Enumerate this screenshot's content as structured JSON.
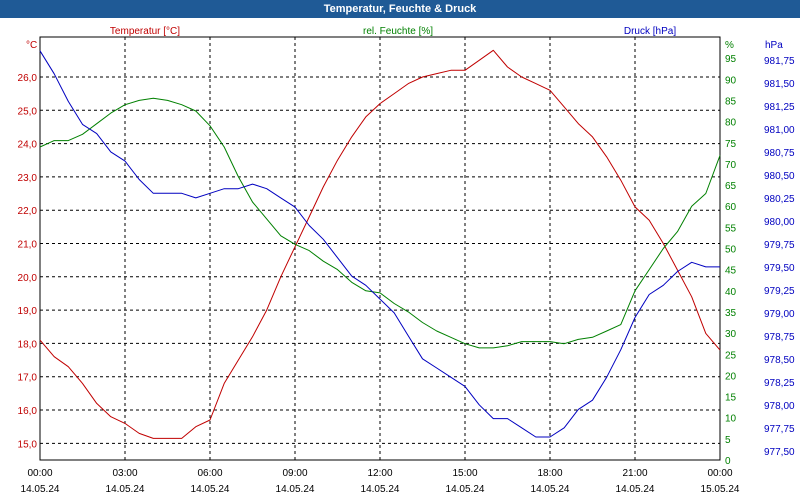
{
  "window": {
    "title": "Temperatur, Feuchte & Druck"
  },
  "colors": {
    "temperature": "#c00000",
    "humidity": "#008000",
    "pressure": "#0000c0",
    "titlebar": "#1f5a96"
  },
  "chart_data": {
    "type": "line",
    "title": "Temperatur, Feuchte & Druck",
    "grid": true,
    "x_ticks": [
      {
        "time": "00:00",
        "date": "14.05.24"
      },
      {
        "time": "03:00",
        "date": "14.05.24"
      },
      {
        "time": "06:00",
        "date": "14.05.24"
      },
      {
        "time": "09:00",
        "date": "14.05.24"
      },
      {
        "time": "12:00",
        "date": "14.05.24"
      },
      {
        "time": "15:00",
        "date": "14.05.24"
      },
      {
        "time": "18:00",
        "date": "14.05.24"
      },
      {
        "time": "21:00",
        "date": "14.05.24"
      },
      {
        "time": "00:00",
        "date": "15.05.24"
      }
    ],
    "axes": {
      "temperature": {
        "label": "Temperatur [°C]",
        "unit": "°C",
        "ylim": [
          14.5,
          27.2
        ],
        "ticks": [
          "15,0",
          "16,0",
          "17,0",
          "18,0",
          "19,0",
          "20,0",
          "21,0",
          "22,0",
          "23,0",
          "24,0",
          "25,0",
          "26,0"
        ]
      },
      "humidity": {
        "label": "rel. Feuchte [%]",
        "unit": "%",
        "ylim": [
          0,
          100
        ],
        "ticks": [
          "0",
          "5",
          "10",
          "15",
          "20",
          "25",
          "30",
          "35",
          "40",
          "45",
          "50",
          "55",
          "60",
          "65",
          "70",
          "75",
          "80",
          "85",
          "90",
          "95",
          "%"
        ]
      },
      "pressure": {
        "label": "Druck [hPa]",
        "unit": "hPa",
        "ylim": [
          977.4,
          982.0
        ],
        "ticks": [
          "977,50",
          "977,75",
          "978,00",
          "978,25",
          "978,50",
          "978,75",
          "979,00",
          "979,25",
          "979,50",
          "979,75",
          "980,00",
          "980,25",
          "980,50",
          "980,75",
          "981,00",
          "981,25",
          "981,50",
          "981,75"
        ]
      }
    },
    "series": [
      {
        "name": "Temperatur [°C]",
        "axis": "temperature",
        "x": [
          0,
          0.5,
          1,
          1.5,
          2,
          2.5,
          3,
          3.5,
          4,
          4.5,
          5,
          5.5,
          6,
          6.5,
          7,
          7.5,
          8,
          8.5,
          9,
          9.5,
          10,
          10.5,
          11,
          11.5,
          12,
          12.5,
          13,
          13.5,
          14,
          14.5,
          15,
          15.5,
          16,
          16.5,
          17,
          17.5,
          18,
          18.5,
          19,
          19.5,
          20,
          20.5,
          21,
          21.5,
          22,
          22.5,
          23,
          23.5,
          24
        ],
        "values": [
          18.1,
          17.6,
          17.3,
          16.8,
          16.2,
          15.8,
          15.6,
          15.3,
          15.15,
          15.15,
          15.15,
          15.5,
          15.7,
          16.8,
          17.5,
          18.2,
          19.0,
          20.0,
          20.9,
          21.8,
          22.7,
          23.5,
          24.2,
          24.8,
          25.2,
          25.5,
          25.8,
          26.0,
          26.1,
          26.2,
          26.2,
          26.5,
          26.8,
          26.3,
          26.0,
          25.8,
          25.6,
          25.1,
          24.6,
          24.2,
          23.6,
          22.9,
          22.1,
          21.7,
          21.0,
          20.2,
          19.4,
          18.3,
          17.8
        ]
      },
      {
        "name": "rel. Feuchte [%]",
        "axis": "humidity",
        "x": [
          0,
          0.5,
          1,
          1.5,
          2,
          2.5,
          3,
          3.5,
          4,
          4.5,
          5,
          5.5,
          6,
          6.5,
          7,
          7.5,
          8,
          8.5,
          9,
          9.5,
          10,
          10.5,
          11,
          11.5,
          12,
          12.5,
          13,
          13.5,
          14,
          14.5,
          15,
          15.5,
          16,
          16.5,
          17,
          17.5,
          18,
          18.5,
          19,
          19.5,
          20,
          20.5,
          21,
          21.5,
          22,
          22.5,
          23,
          23.5,
          24
        ],
        "values": [
          74,
          75.5,
          75.5,
          77,
          79.5,
          82,
          84,
          85,
          85.5,
          85,
          84,
          82.5,
          79,
          74,
          67,
          61,
          57,
          53,
          51,
          49.5,
          47,
          45,
          42,
          40,
          39.5,
          37,
          35,
          32.5,
          30.5,
          29,
          27.5,
          26.5,
          26.5,
          27,
          28,
          28,
          28,
          27.5,
          28.5,
          29,
          30.5,
          32,
          40,
          45,
          50,
          54,
          60,
          63,
          72
        ]
      },
      {
        "name": "Druck [hPa]",
        "axis": "pressure",
        "x": [
          0,
          0.5,
          1,
          1.5,
          2,
          2.5,
          3,
          3.5,
          4,
          4.5,
          5,
          5.5,
          6,
          6.5,
          7,
          7.5,
          8,
          8.5,
          9,
          9.5,
          10,
          10.5,
          11,
          11.5,
          12,
          12.5,
          13,
          13.5,
          14,
          14.5,
          15,
          15.5,
          16,
          16.5,
          17,
          17.5,
          18,
          18.5,
          19,
          19.5,
          20,
          20.5,
          21,
          21.5,
          22,
          22.5,
          23,
          23.5,
          24
        ],
        "values": [
          981.85,
          981.6,
          981.3,
          981.05,
          980.95,
          980.75,
          980.65,
          980.45,
          980.3,
          980.3,
          980.3,
          980.25,
          980.3,
          980.35,
          980.35,
          980.4,
          980.35,
          980.25,
          980.15,
          979.95,
          979.8,
          979.6,
          979.4,
          979.3,
          979.15,
          979.0,
          978.75,
          978.5,
          978.4,
          978.3,
          978.2,
          978.0,
          977.85,
          977.85,
          977.75,
          977.65,
          977.65,
          977.75,
          977.95,
          978.05,
          978.3,
          978.6,
          978.95,
          979.2,
          979.3,
          979.45,
          979.55,
          979.5,
          979.5
        ]
      }
    ]
  }
}
